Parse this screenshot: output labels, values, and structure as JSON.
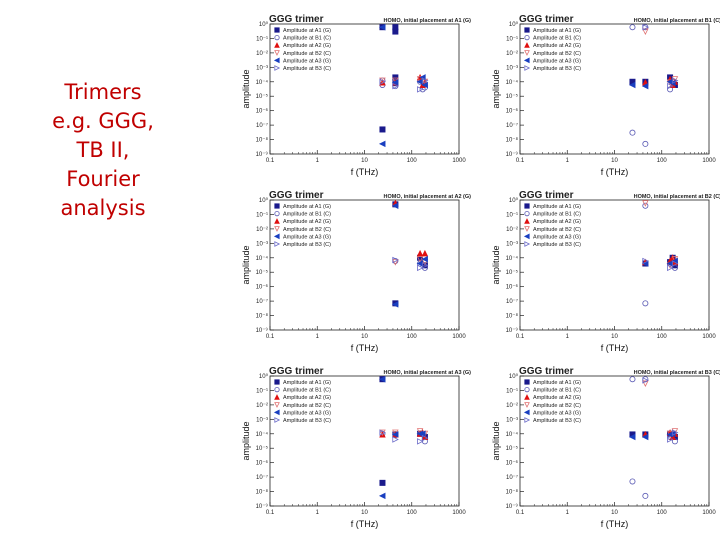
{
  "slide": {
    "title_lines": [
      "Trimers",
      "e.g. GGG,",
      "TB II,",
      "Fourier",
      "analysis"
    ]
  },
  "chart_data": [
    {
      "type": "scatter",
      "title": "GGG trimer",
      "subtitle": "HOMO, initial placement at A1 (G)",
      "xlabel": "f (THz)",
      "ylabel": "amplitude",
      "xscale": "log",
      "yscale": "log",
      "xlim": [
        0.1,
        1000
      ],
      "ylim": [
        1e-09,
        1
      ],
      "x_tick_labels": [
        "0.1",
        "1",
        "10",
        "100",
        "1000"
      ],
      "y_tick_labels": [
        "10⁰",
        "10⁻¹",
        "10⁻²",
        "10⁻³",
        "10⁻⁴",
        "10⁻⁵",
        "10⁻⁶",
        "10⁻⁷",
        "10⁻⁸",
        "10⁻⁹"
      ],
      "legend_position": "top-left",
      "series": [
        {
          "name": "Amplitude at A1 (G)",
          "x": [
            24,
            24,
            45,
            45,
            45,
            45
          ],
          "y": [
            0.6,
            5e-08,
            0.6,
            0.3,
            0.0002,
            8e-05
          ]
        },
        {
          "name": "Amplitude at B1 (C)",
          "x": [
            24,
            24,
            45,
            45,
            150,
            170,
            190
          ],
          "y": [
            0.00012,
            6e-05,
            0.0001,
            5e-05,
            0.0001,
            3e-05,
            4e-05
          ]
        },
        {
          "name": "Amplitude at A2 (G)",
          "x": [
            24,
            45,
            150,
            170,
            190
          ],
          "y": [
            9e-05,
            9e-05,
            0.0002,
            6e-05,
            9e-05
          ]
        },
        {
          "name": "Amplitude at B2 (C)",
          "x": [
            24,
            45,
            150,
            190
          ],
          "y": [
            0.00012,
            0.00012,
            0.00015,
            0.0001
          ]
        },
        {
          "name": "Amplitude at A3 (G)",
          "x": [
            24,
            24,
            45,
            150,
            170,
            190
          ],
          "y": [
            0.6,
            5e-09,
            9e-05,
            0.0001,
            0.0002,
            6e-05
          ]
        },
        {
          "name": "Amplitude at B3 (C)",
          "x": [
            24,
            45,
            150,
            190
          ],
          "y": [
            0.0001,
            5e-05,
            3e-05,
            0.00012
          ]
        }
      ]
    },
    {
      "type": "scatter",
      "title": "GGG trimer",
      "subtitle": "HOMO, initial placement at B1 (C)",
      "xlabel": "f (THz)",
      "ylabel": "amplitude",
      "xscale": "log",
      "yscale": "log",
      "xlim": [
        0.1,
        1000
      ],
      "ylim": [
        1e-09,
        1
      ],
      "x_tick_labels": [
        "0.1",
        "1",
        "10",
        "100",
        "1000"
      ],
      "y_tick_labels": [
        "10⁰",
        "10⁻¹",
        "10⁻²",
        "10⁻³",
        "10⁻⁴",
        "10⁻⁵",
        "10⁻⁶",
        "10⁻⁷",
        "10⁻⁸",
        "10⁻⁹"
      ],
      "legend_position": "top-left",
      "series": [
        {
          "name": "Amplitude at A1 (G)",
          "x": [
            24,
            45,
            150,
            190
          ],
          "y": [
            0.0001,
            0.0001,
            0.0002,
            6e-05
          ]
        },
        {
          "name": "Amplitude at B1 (C)",
          "x": [
            24,
            24,
            45,
            45,
            150,
            170
          ],
          "y": [
            0.6,
            3e-08,
            0.6,
            5e-09,
            3e-05,
            0.0001
          ]
        },
        {
          "name": "Amplitude at A2 (G)",
          "x": [
            45,
            150,
            170,
            190
          ],
          "y": [
            9e-05,
            0.00015,
            6e-05,
            0.0001
          ]
        },
        {
          "name": "Amplitude at B2 (C)",
          "x": [
            45,
            150,
            190
          ],
          "y": [
            0.3,
            9e-05,
            0.00015
          ]
        },
        {
          "name": "Amplitude at A3 (G)",
          "x": [
            24,
            45,
            150,
            170
          ],
          "y": [
            6e-05,
            5e-05,
            0.0001,
            8e-05
          ]
        },
        {
          "name": "Amplitude at B3 (C)",
          "x": [
            45,
            150,
            190
          ],
          "y": [
            0.6,
            5e-05,
            0.00012
          ]
        }
      ]
    },
    {
      "type": "scatter",
      "title": "GGG trimer",
      "subtitle": "HOMO, initial placement at A2 (G)",
      "xlabel": "f (THz)",
      "ylabel": "amplitude",
      "xscale": "log",
      "yscale": "log",
      "xlim": [
        0.1,
        1000
      ],
      "ylim": [
        1e-09,
        1
      ],
      "x_tick_labels": [
        "0.1",
        "1",
        "10",
        "100",
        "1000"
      ],
      "y_tick_labels": [
        "10⁰",
        "10⁻¹",
        "10⁻²",
        "10⁻³",
        "10⁻⁴",
        "10⁻⁵",
        "10⁻⁶",
        "10⁻⁷",
        "10⁻⁸",
        "10⁻⁹"
      ],
      "legend_position": "top-left",
      "series": [
        {
          "name": "Amplitude at A1 (G)",
          "x": [
            45,
            45,
            150,
            190
          ],
          "y": [
            0.5,
            7e-08,
            0.0001,
            3e-05
          ]
        },
        {
          "name": "Amplitude at B1 (C)",
          "x": [
            45,
            150,
            190
          ],
          "y": [
            6e-05,
            4e-05,
            2e-05
          ]
        },
        {
          "name": "Amplitude at A2 (G)",
          "x": [
            45,
            150,
            190
          ],
          "y": [
            0.6,
            0.0002,
            0.0002
          ]
        },
        {
          "name": "Amplitude at B2 (C)",
          "x": [
            45,
            150,
            190
          ],
          "y": [
            5e-05,
            8e-05,
            5e-05
          ]
        },
        {
          "name": "Amplitude at A3 (G)",
          "x": [
            45,
            45,
            150,
            190
          ],
          "y": [
            0.4,
            6e-08,
            4e-05,
            8e-05
          ]
        },
        {
          "name": "Amplitude at B3 (C)",
          "x": [
            45,
            150,
            190
          ],
          "y": [
            7e-05,
            2e-05,
            3e-05
          ]
        }
      ]
    },
    {
      "type": "scatter",
      "title": "GGG trimer",
      "subtitle": "HOMO, initial placement at B2 (C)",
      "xlabel": "f (THz)",
      "ylabel": "amplitude",
      "xscale": "log",
      "yscale": "log",
      "xlim": [
        0.1,
        1000
      ],
      "ylim": [
        1e-09,
        1
      ],
      "x_tick_labels": [
        "0.1",
        "1",
        "10",
        "100",
        "1000"
      ],
      "y_tick_labels": [
        "10⁰",
        "10⁻¹",
        "10⁻²",
        "10⁻³",
        "10⁻⁴",
        "10⁻⁵",
        "10⁻⁶",
        "10⁻⁷",
        "10⁻⁸",
        "10⁻⁹"
      ],
      "legend_position": "top-left",
      "series": [
        {
          "name": "Amplitude at A1 (G)",
          "x": [
            45,
            150,
            170,
            190
          ],
          "y": [
            4e-05,
            5e-05,
            0.0001,
            3e-05
          ]
        },
        {
          "name": "Amplitude at B1 (C)",
          "x": [
            45,
            45,
            150,
            190
          ],
          "y": [
            0.4,
            7e-08,
            4e-05,
            2e-05
          ]
        },
        {
          "name": "Amplitude at A2 (G)",
          "x": [
            45,
            150,
            170,
            190
          ],
          "y": [
            5e-05,
            6e-05,
            0.0001,
            5e-05
          ]
        },
        {
          "name": "Amplitude at B2 (C)",
          "x": [
            45,
            150,
            190
          ],
          "y": [
            0.6,
            3e-05,
            8e-05
          ]
        },
        {
          "name": "Amplitude at A3 (G)",
          "x": [
            45,
            150,
            190
          ],
          "y": [
            4e-05,
            4e-05,
            6e-05
          ]
        },
        {
          "name": "Amplitude at B3 (C)",
          "x": [
            45,
            150,
            190
          ],
          "y": [
            6e-05,
            2e-05,
            4e-05
          ]
        }
      ]
    },
    {
      "type": "scatter",
      "title": "GGG trimer",
      "subtitle": "HOMO, initial placement at A3 (G)",
      "xlabel": "f (THz)",
      "ylabel": "amplitude",
      "xscale": "log",
      "yscale": "log",
      "xlim": [
        0.1,
        1000
      ],
      "ylim": [
        1e-09,
        1
      ],
      "x_tick_labels": [
        "0.1",
        "1",
        "10",
        "100",
        "1000"
      ],
      "y_tick_labels": [
        "10⁰",
        "10⁻¹",
        "10⁻²",
        "10⁻³",
        "10⁻⁴",
        "10⁻⁵",
        "10⁻⁶",
        "10⁻⁷",
        "10⁻⁸",
        "10⁻⁹"
      ],
      "legend_position": "top-left",
      "series": [
        {
          "name": "Amplitude at A1 (G)",
          "x": [
            24,
            24,
            45,
            150,
            190
          ],
          "y": [
            0.6,
            4e-08,
            9e-05,
            0.0001,
            6e-05
          ]
        },
        {
          "name": "Amplitude at B1 (C)",
          "x": [
            24,
            45,
            150,
            190
          ],
          "y": [
            0.0001,
            8e-05,
            0.0001,
            3e-05
          ]
        },
        {
          "name": "Amplitude at A2 (G)",
          "x": [
            24,
            45,
            150,
            170,
            190
          ],
          "y": [
            9e-05,
            9e-05,
            0.0001,
            0.00012,
            6e-05
          ]
        },
        {
          "name": "Amplitude at B2 (C)",
          "x": [
            24,
            45,
            150,
            190
          ],
          "y": [
            0.00012,
            0.00012,
            0.00015,
            0.0001
          ]
        },
        {
          "name": "Amplitude at A3 (G)",
          "x": [
            24,
            24,
            45,
            150,
            170
          ],
          "y": [
            0.6,
            5e-09,
            9e-05,
            0.0001,
            0.0001
          ]
        },
        {
          "name": "Amplitude at B3 (C)",
          "x": [
            24,
            45,
            150,
            190
          ],
          "y": [
            0.00012,
            4e-05,
            3e-05,
            5e-05
          ]
        }
      ]
    },
    {
      "type": "scatter",
      "title": "GGG trimer",
      "subtitle": "HOMO, initial placement at B3 (C)",
      "xlabel": "f (THz)",
      "ylabel": "amplitude",
      "xscale": "log",
      "yscale": "log",
      "xlim": [
        0.1,
        1000
      ],
      "ylim": [
        1e-09,
        1
      ],
      "x_tick_labels": [
        "0.1",
        "1",
        "10",
        "100",
        "1000"
      ],
      "y_tick_labels": [
        "10⁰",
        "10⁻¹",
        "10⁻²",
        "10⁻³",
        "10⁻⁴",
        "10⁻⁵",
        "10⁻⁶",
        "10⁻⁷",
        "10⁻⁸",
        "10⁻⁹"
      ],
      "legend_position": "top-left",
      "series": [
        {
          "name": "Amplitude at A1 (G)",
          "x": [
            24,
            45,
            150,
            190
          ],
          "y": [
            9e-05,
            9e-05,
            0.0001,
            6e-05
          ]
        },
        {
          "name": "Amplitude at B1 (C)",
          "x": [
            24,
            24,
            45,
            45,
            150,
            190
          ],
          "y": [
            0.6,
            5e-08,
            0.6,
            5e-09,
            6e-05,
            3e-05
          ]
        },
        {
          "name": "Amplitude at A2 (G)",
          "x": [
            45,
            150,
            170,
            190
          ],
          "y": [
            9e-05,
            0.00012,
            6e-05,
            0.0001
          ]
        },
        {
          "name": "Amplitude at B2 (C)",
          "x": [
            45,
            150,
            190
          ],
          "y": [
            0.3,
            0.0001,
            0.00015
          ]
        },
        {
          "name": "Amplitude at A3 (G)",
          "x": [
            24,
            45,
            150,
            170
          ],
          "y": [
            6e-05,
            6e-05,
            9e-05,
            0.0001
          ]
        },
        {
          "name": "Amplitude at B3 (C)",
          "x": [
            45,
            150,
            190
          ],
          "y": [
            0.5,
            4e-05,
            0.00012
          ]
        }
      ]
    }
  ]
}
